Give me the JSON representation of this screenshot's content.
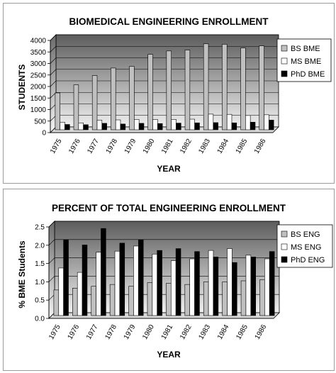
{
  "chart_data": [
    {
      "type": "bar",
      "title": "BIOMEDICAL ENGINEERING ENROLLMENT",
      "xlabel": "YEAR",
      "ylabel": "STUDENTS",
      "ylim": [
        0,
        4000
      ],
      "ytick_step": 500,
      "yticks": [
        "0",
        "500",
        "1000",
        "1500",
        "2000",
        "2500",
        "3000",
        "3500",
        "4000"
      ],
      "grid": true,
      "legend_position": "right",
      "categories": [
        "1975",
        "1976",
        "1977",
        "1978",
        "1979",
        "1980",
        "1981",
        "1982",
        "1983",
        "1984",
        "1985",
        "1986"
      ],
      "series": [
        {
          "name": "BS BME",
          "color": "#c0c0c0",
          "values": [
            1600,
            1950,
            2350,
            2680,
            2750,
            3270,
            3420,
            3460,
            3730,
            3710,
            3550,
            3640
          ]
        },
        {
          "name": "MS BME",
          "color": "#ffffff",
          "values": [
            330,
            300,
            420,
            430,
            450,
            450,
            450,
            460,
            680,
            670,
            620,
            650
          ]
        },
        {
          "name": "PhD BME",
          "color": "#000000",
          "values": [
            230,
            220,
            280,
            250,
            280,
            270,
            290,
            300,
            310,
            300,
            330,
            420
          ]
        }
      ]
    },
    {
      "type": "bar",
      "title": "PERCENT OF TOTAL ENGINEERING ENROLLMENT",
      "xlabel": "YEAR",
      "ylabel": "% BME Students",
      "ylim": [
        0,
        2.5
      ],
      "ytick_step": 0.5,
      "yticks": [
        "0.0",
        "0.5",
        "1.0",
        "1.5",
        "2.0",
        "2.5"
      ],
      "grid": true,
      "legend_position": "right",
      "categories": [
        "1975",
        "1976",
        "1977",
        "1978",
        "1979",
        "1980",
        "1981",
        "1982",
        "1983",
        "1984",
        "1985",
        "1986"
      ],
      "series": [
        {
          "name": "BS ENG",
          "color": "#c0c0c0",
          "values": [
            0.7,
            0.75,
            0.8,
            0.85,
            0.8,
            0.9,
            0.88,
            0.85,
            0.92,
            0.92,
            0.95,
            0.98
          ]
        },
        {
          "name": "MS ENG",
          "color": "#ffffff",
          "values": [
            1.3,
            1.18,
            1.73,
            1.76,
            1.9,
            1.68,
            1.5,
            1.55,
            1.78,
            1.83,
            1.65,
            1.55
          ]
        },
        {
          "name": "PhD ENG",
          "color": "#000000",
          "values": [
            2.07,
            1.93,
            2.38,
            1.98,
            2.07,
            1.78,
            1.83,
            1.75,
            1.6,
            1.45,
            1.6,
            1.75
          ]
        }
      ]
    }
  ]
}
